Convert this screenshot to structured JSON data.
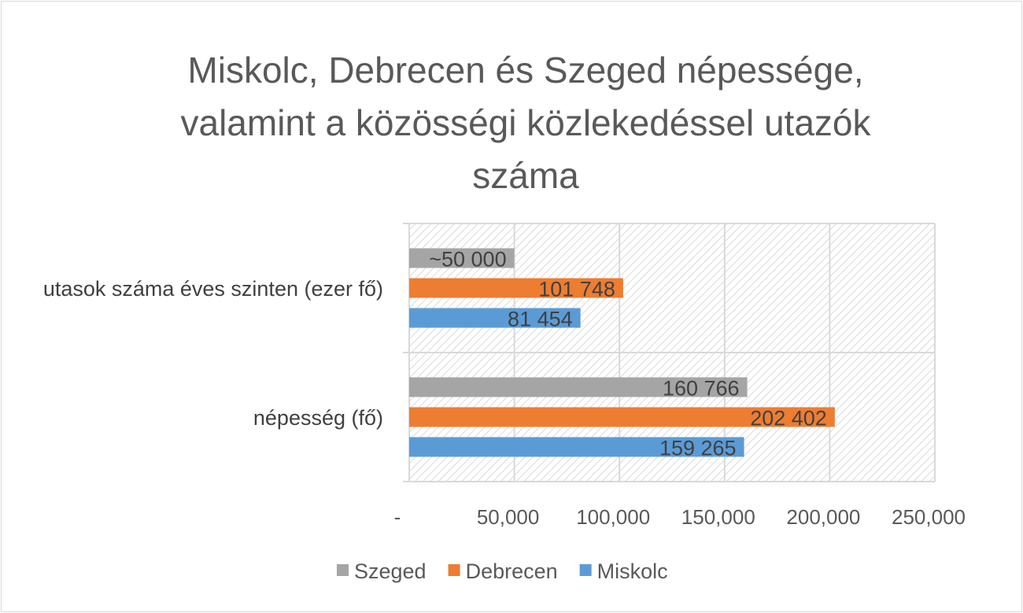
{
  "chart_data": {
    "type": "bar",
    "orientation": "horizontal",
    "title_lines": [
      "Miskolc, Debrecen és Szeged népessége,",
      "valamint a közösségi közlekedéssel utazók",
      "száma"
    ],
    "categories": [
      "népesség (fő)",
      "utasok száma éves szinten (ezer fő)"
    ],
    "series": [
      {
        "name": "Szeged",
        "color": "#a5a5a5",
        "values": [
          160766,
          50000
        ],
        "labels": [
          "160 766",
          "~50 000"
        ]
      },
      {
        "name": "Debrecen",
        "color": "#ed7d31",
        "values": [
          202402,
          101748
        ],
        "labels": [
          "202 402",
          "101 748"
        ]
      },
      {
        "name": "Miskolc",
        "color": "#5b9bd5",
        "values": [
          159265,
          81454
        ],
        "labels": [
          "159 265",
          "81 454"
        ]
      }
    ],
    "xlim": [
      0,
      250000
    ],
    "xticks": [
      0,
      50000,
      100000,
      150000,
      200000,
      250000
    ],
    "xtick_labels": [
      "-",
      "50,000",
      "100,000",
      "150,000",
      "200,000",
      "250,000"
    ],
    "grid": true,
    "legend_position": "bottom",
    "xlabel": "",
    "ylabel": ""
  }
}
